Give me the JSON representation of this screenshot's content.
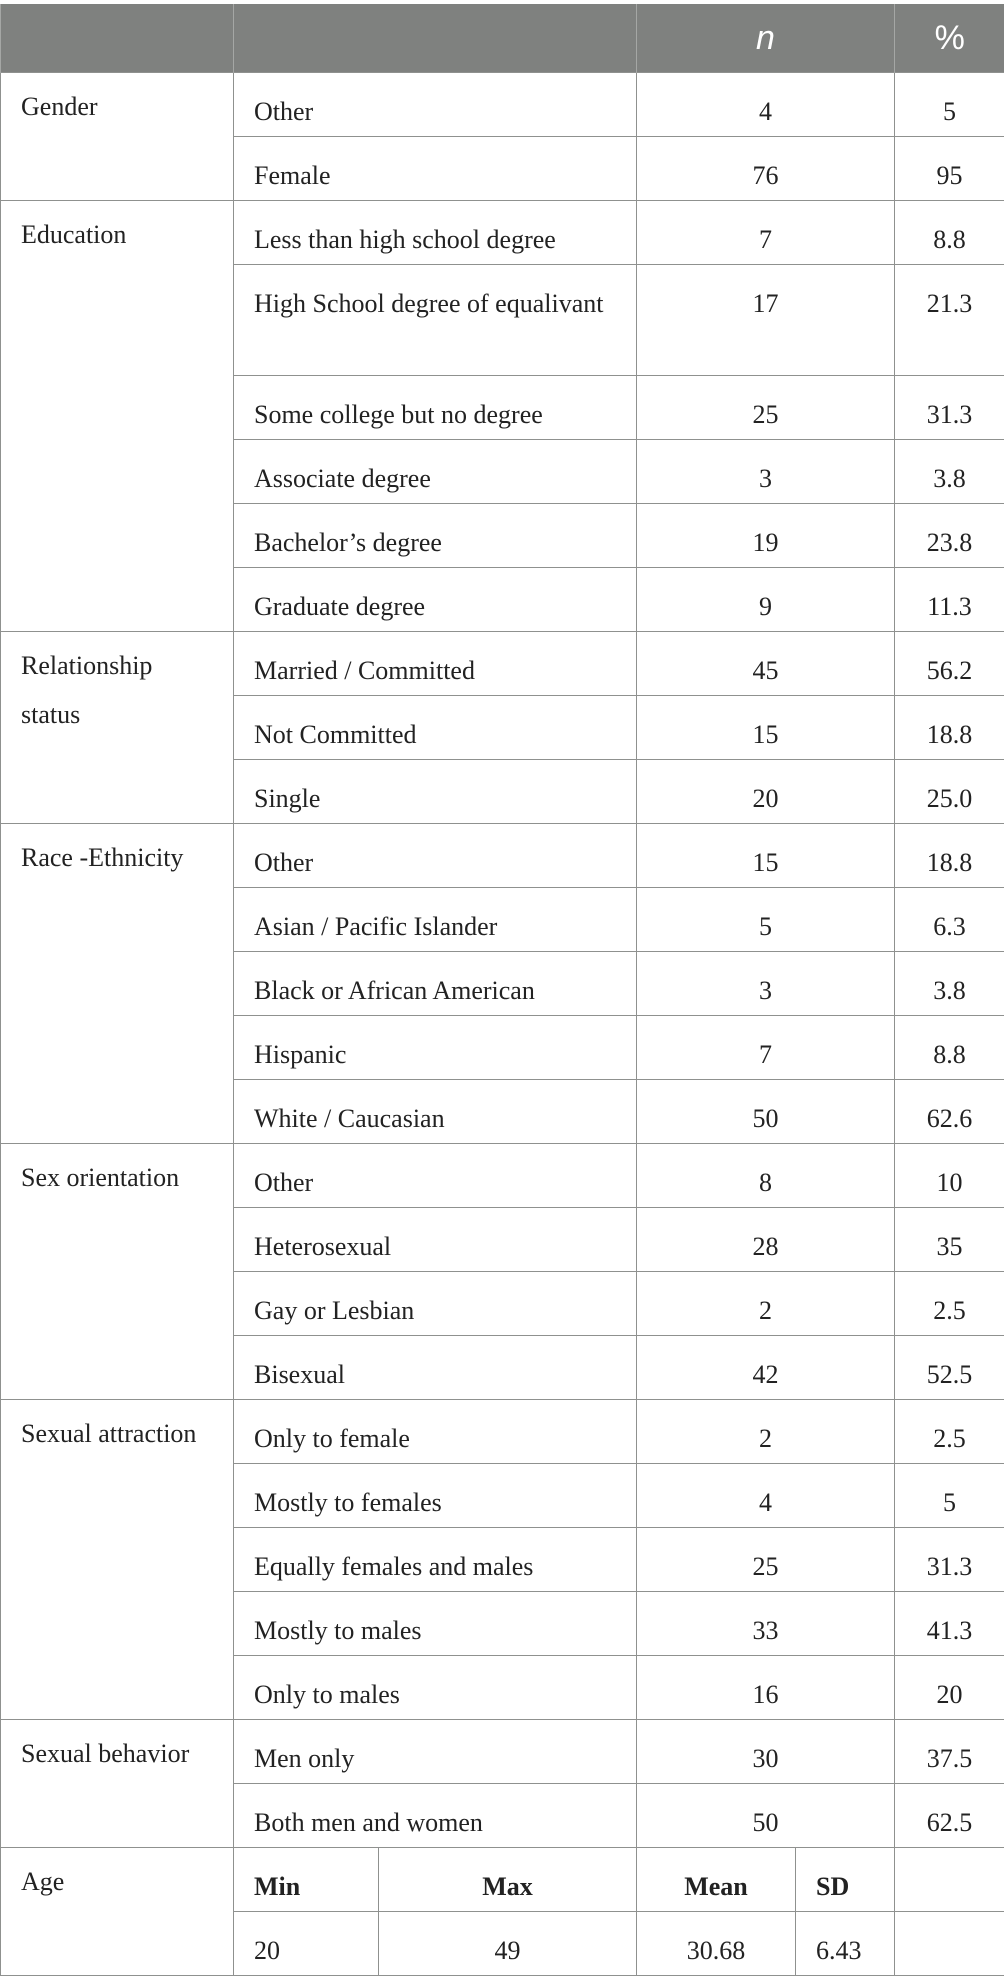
{
  "header": {
    "col1": "",
    "col2": "",
    "n": "n",
    "pct": "%"
  },
  "groups": [
    {
      "category": "Gender",
      "rows": [
        {
          "label": "Other",
          "n": "4",
          "pct": "5"
        },
        {
          "label": "Female",
          "n": "76",
          "pct": "95"
        }
      ]
    },
    {
      "category": "Education",
      "rows": [
        {
          "label": "Less than high school degree",
          "n": "7",
          "pct": "8.8"
        },
        {
          "label": "High School degree of equalivant",
          "n": "17",
          "pct": "21.3"
        },
        {
          "label": "Some college but no degree",
          "n": "25",
          "pct": "31.3"
        },
        {
          "label": "Associate degree",
          "n": "3",
          "pct": "3.8"
        },
        {
          "label": "Bachelor’s degree",
          "n": "19",
          "pct": "23.8"
        },
        {
          "label": "Graduate degree",
          "n": "9",
          "pct": "11.3"
        }
      ]
    },
    {
      "category": "Relationship status",
      "rows": [
        {
          "label": "Married / Committed",
          "n": "45",
          "pct": "56.2"
        },
        {
          "label": "Not Committed",
          "n": "15",
          "pct": "18.8"
        },
        {
          "label": "Single",
          "n": "20",
          "pct": "25.0"
        }
      ]
    },
    {
      "category": "Race -Ethnicity",
      "rows": [
        {
          "label": "Other",
          "n": "15",
          "pct": "18.8"
        },
        {
          "label": "Asian / Pacific Islander",
          "n": "5",
          "pct": "6.3"
        },
        {
          "label": "Black or African American",
          "n": "3",
          "pct": "3.8"
        },
        {
          "label": "Hispanic",
          "n": "7",
          "pct": "8.8"
        },
        {
          "label": "White / Caucasian",
          "n": "50",
          "pct": "62.6"
        }
      ]
    },
    {
      "category": "Sex orientation",
      "rows": [
        {
          "label": "Other",
          "n": "8",
          "pct": "10"
        },
        {
          "label": "Heterosexual",
          "n": "28",
          "pct": "35"
        },
        {
          "label": "Gay or Lesbian",
          "n": "2",
          "pct": "2.5"
        },
        {
          "label": "Bisexual",
          "n": "42",
          "pct": "52.5"
        }
      ]
    },
    {
      "category": "Sexual attraction",
      "rows": [
        {
          "label": "Only to female",
          "n": "2",
          "pct": "2.5"
        },
        {
          "label": "Mostly to females",
          "n": "4",
          "pct": "5"
        },
        {
          "label": "Equally females and males",
          "n": "25",
          "pct": "31.3"
        },
        {
          "label": "Mostly to males",
          "n": "33",
          "pct": "41.3"
        },
        {
          "label": "Only to males",
          "n": "16",
          "pct": "20"
        }
      ]
    },
    {
      "category": "Sexual behavior",
      "rows": [
        {
          "label": "Men only",
          "n": "30",
          "pct": "37.5"
        },
        {
          "label": "Both men and women",
          "n": "50",
          "pct": "62.5"
        }
      ]
    }
  ],
  "age": {
    "category": "Age",
    "headers": {
      "min": "Min",
      "max": "Max",
      "mean": "Mean",
      "sd": "SD"
    },
    "values": {
      "min": "20",
      "max": "49",
      "mean": "30.68",
      "sd": "6.43"
    }
  }
}
